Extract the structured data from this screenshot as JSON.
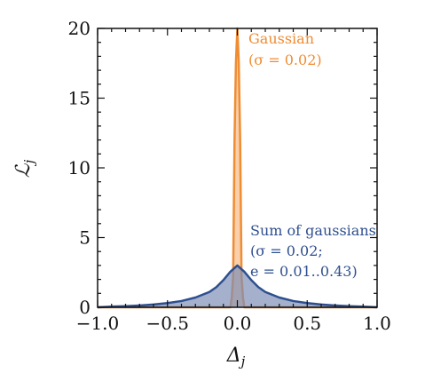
{
  "chart_data": {
    "type": "area",
    "title": "",
    "xlabel": "Δ",
    "xlabel_subscript": "j",
    "ylabel": "ℒ",
    "ylabel_subscript": "j",
    "xlim": [
      -1.0,
      1.0
    ],
    "ylim": [
      0,
      20
    ],
    "xticks": [
      -1.0,
      -0.5,
      0.0,
      0.5,
      1.0
    ],
    "xtick_labels": [
      "−1.0",
      "−0.5",
      "0.0",
      "0.5",
      "1.0"
    ],
    "yticks": [
      0,
      5,
      10,
      15,
      20
    ],
    "ytick_labels": [
      "0",
      "5",
      "10",
      "15",
      "20"
    ],
    "grid": false,
    "series": [
      {
        "name": "Gaussian (σ = 0.02)",
        "color": "#f08c32",
        "fill": "#f7c08f",
        "x": [
          -1.0,
          -0.08,
          -0.06,
          -0.05,
          -0.04,
          -0.03,
          -0.02,
          -0.01,
          0.0,
          0.01,
          0.02,
          0.03,
          0.04,
          0.05,
          0.06,
          0.08,
          1.0
        ],
        "y": [
          0,
          0.0,
          0.0,
          0.0,
          0.7,
          2.2,
          12.1,
          17.6,
          20.0,
          17.6,
          12.1,
          2.2,
          0.7,
          0.0,
          0.0,
          0.0,
          0
        ]
      },
      {
        "name": "Sum of gaussians (σ = 0.02; e = 0.01..0.43)",
        "color": "#2e4f8f",
        "fill": "#7d8fb6",
        "x": [
          -1.0,
          -0.9,
          -0.8,
          -0.7,
          -0.6,
          -0.5,
          -0.4,
          -0.3,
          -0.2,
          -0.15,
          -0.1,
          -0.05,
          0.0,
          0.05,
          0.1,
          0.15,
          0.2,
          0.3,
          0.4,
          0.5,
          0.6,
          0.7,
          0.8,
          0.9,
          1.0
        ],
        "y": [
          0.0,
          0.05,
          0.08,
          0.13,
          0.2,
          0.3,
          0.45,
          0.7,
          1.1,
          1.45,
          1.95,
          2.55,
          3.0,
          2.55,
          1.95,
          1.45,
          1.1,
          0.7,
          0.45,
          0.3,
          0.2,
          0.13,
          0.08,
          0.05,
          0.0
        ]
      }
    ],
    "annotations": [
      {
        "lines": [
          "Gaussian",
          "(σ = 0.02)"
        ],
        "color": "#f08c32"
      },
      {
        "lines": [
          "Sum of gaussians",
          "(σ = 0.02;",
          "e = 0.01..0.43)"
        ],
        "color": "#2e4f8f"
      }
    ]
  }
}
